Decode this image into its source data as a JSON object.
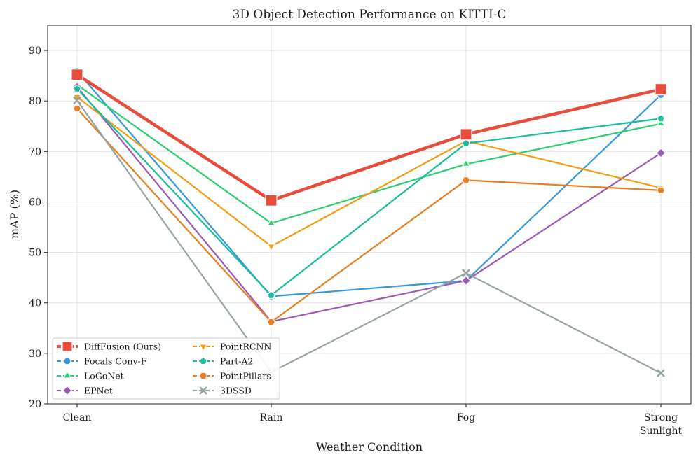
{
  "chart_data": {
    "type": "line",
    "title": "3D Object Detection Performance on KITTI-C",
    "xlabel": "Weather Condition",
    "ylabel": "mAP (%)",
    "categories": [
      [
        "Clean"
      ],
      [
        "Rain"
      ],
      [
        "Fog"
      ],
      [
        "Strong",
        "Sunlight"
      ]
    ],
    "ylim": [
      20,
      95
    ],
    "yticks": [
      20,
      30,
      40,
      50,
      60,
      70,
      80,
      90
    ],
    "grid": true,
    "legend_position": "lower-left",
    "series": [
      {
        "name": "DiffFusion (Ours)",
        "values": [
          85.2,
          60.3,
          73.4,
          82.3
        ],
        "color": "#e74c3c",
        "marker": "square",
        "highlight": true
      },
      {
        "name": "Focals Conv-F",
        "values": [
          85.9,
          41.3,
          44.4,
          81.2
        ],
        "color": "#3498db",
        "marker": "circle"
      },
      {
        "name": "LoGoNet",
        "values": [
          83.2,
          55.8,
          67.5,
          75.5
        ],
        "color": "#2ecc71",
        "marker": "triangle-up"
      },
      {
        "name": "EPNet",
        "values": [
          82.8,
          36.3,
          44.4,
          69.7
        ],
        "color": "#9b59b6",
        "marker": "diamond"
      },
      {
        "name": "PointRCNN",
        "values": [
          80.8,
          51.2,
          72.1,
          62.8
        ],
        "color": "#f39c12",
        "marker": "triangle-down"
      },
      {
        "name": "Part-A2",
        "values": [
          82.4,
          41.5,
          71.6,
          76.5
        ],
        "color": "#1abc9c",
        "marker": "pentagon"
      },
      {
        "name": "PointPillars",
        "values": [
          78.5,
          36.2,
          64.3,
          62.3
        ],
        "color": "#e67e22",
        "marker": "hexagon"
      },
      {
        "name": "3DSSD",
        "values": [
          80.1,
          26.3,
          45.9,
          26.1
        ],
        "color": "#95a5a6",
        "marker": "x"
      }
    ]
  }
}
